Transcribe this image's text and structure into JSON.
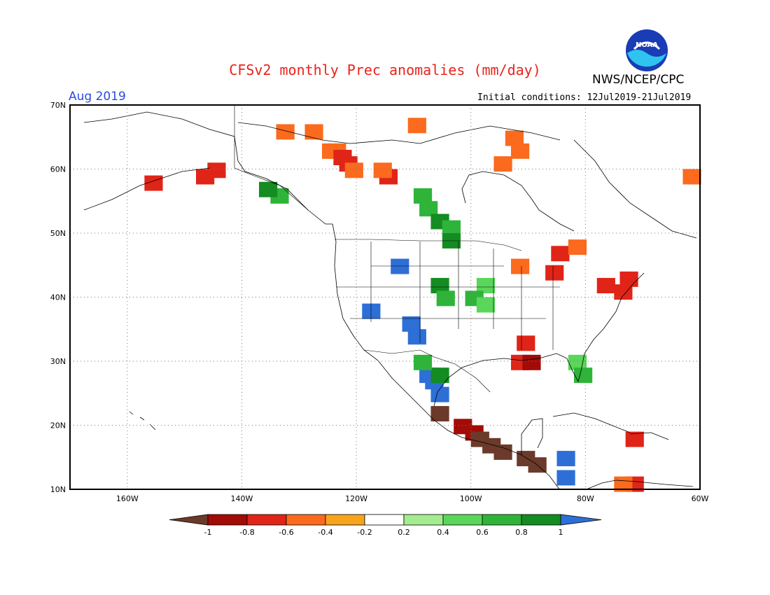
{
  "header": {
    "title": "CFSv2 monthly Prec anomalies (mm/day)",
    "agency": "NWS/NCEP/CPC",
    "logo_text": "NOAA",
    "month": "Aug 2019",
    "initial_conditions": "Initial conditions: 12Jul2019-21Jul2019"
  },
  "map": {
    "lon_range": [
      -170,
      -60
    ],
    "lat_range": [
      10,
      70
    ],
    "lat_labels": [
      "10N",
      "20N",
      "30N",
      "40N",
      "50N",
      "60N",
      "70N"
    ],
    "lat_values": [
      10,
      20,
      30,
      40,
      50,
      60,
      70
    ],
    "lon_labels": [
      "160W",
      "140W",
      "120W",
      "100W",
      "80W",
      "60W"
    ],
    "lon_values": [
      -160,
      -140,
      -120,
      -100,
      -80,
      -60
    ],
    "grid": true
  },
  "colorbar": {
    "labels": [
      "-1",
      "-0.8",
      "-0.6",
      "-0.4",
      "-0.2",
      "0.2",
      "0.4",
      "0.6",
      "0.8",
      "1"
    ],
    "colors": [
      "#a30b06",
      "#e02418",
      "#fb6a1d",
      "#f7a31b",
      "#ffffff",
      "#a4ec8f",
      "#5ad65a",
      "#2fb43a",
      "#148c22"
    ],
    "low_color": "#6b3a2a",
    "high_color": "#2d6fd6"
  },
  "anomaly_cells": [
    {
      "lat": 63,
      "lon": -125,
      "level": "-0.4"
    },
    {
      "lat": 63,
      "lon": -124,
      "level": "-0.4"
    },
    {
      "lat": 62,
      "lon": -123,
      "level": "-0.6"
    },
    {
      "lat": 61,
      "lon": -122,
      "level": "-0.6"
    },
    {
      "lat": 60,
      "lon": -121,
      "level": "-0.4"
    },
    {
      "lat": 59,
      "lon": -115,
      "level": "-0.6"
    },
    {
      "lat": 60,
      "lon": -116,
      "level": "-0.4"
    },
    {
      "lat": 66,
      "lon": -128,
      "level": "-0.4"
    },
    {
      "lat": 66,
      "lon": -133,
      "level": "-0.4"
    },
    {
      "lat": 67,
      "lon": -110,
      "level": "-0.4"
    },
    {
      "lat": 65,
      "lon": -93,
      "level": "-0.4"
    },
    {
      "lat": 63,
      "lon": -92,
      "level": "-0.4"
    },
    {
      "lat": 61,
      "lon": -95,
      "level": "-0.4"
    },
    {
      "lat": 59,
      "lon": -62,
      "level": "-0.4"
    },
    {
      "lat": 60,
      "lon": -145,
      "level": "-0.6"
    },
    {
      "lat": 59,
      "lon": -147,
      "level": "-0.6"
    },
    {
      "lat": 58,
      "lon": -156,
      "level": "-0.6"
    },
    {
      "lat": 56,
      "lon": -109,
      "level": "0.6"
    },
    {
      "lat": 54,
      "lon": -108,
      "level": "0.6"
    },
    {
      "lat": 52,
      "lon": -106,
      "level": "0.8"
    },
    {
      "lat": 51,
      "lon": -104,
      "level": "0.6"
    },
    {
      "lat": 49,
      "lon": -104,
      "level": "0.8"
    },
    {
      "lat": 56,
      "lon": -134,
      "level": "0.6"
    },
    {
      "lat": 57,
      "lon": -136,
      "level": "0.8"
    },
    {
      "lat": 45,
      "lon": -113,
      "level": "1"
    },
    {
      "lat": 42,
      "lon": -106,
      "level": "0.8"
    },
    {
      "lat": 40,
      "lon": -105,
      "level": "0.6"
    },
    {
      "lat": 38,
      "lon": -118,
      "level": "1"
    },
    {
      "lat": 36,
      "lon": -111,
      "level": "1"
    },
    {
      "lat": 34,
      "lon": -110,
      "level": "1"
    },
    {
      "lat": 28,
      "lon": -108,
      "level": "1"
    },
    {
      "lat": 27,
      "lon": -107,
      "level": "1"
    },
    {
      "lat": 25,
      "lon": -106,
      "level": "1"
    },
    {
      "lat": 28,
      "lon": -106,
      "level": "0.8"
    },
    {
      "lat": 30,
      "lon": -109,
      "level": "0.6"
    },
    {
      "lat": 47,
      "lon": -85,
      "level": "-0.6"
    },
    {
      "lat": 48,
      "lon": -82,
      "level": "-0.4"
    },
    {
      "lat": 44,
      "lon": -86,
      "level": "-0.6"
    },
    {
      "lat": 45,
      "lon": -92,
      "level": "-0.4"
    },
    {
      "lat": 42,
      "lon": -77,
      "level": "-0.6"
    },
    {
      "lat": 43,
      "lon": -73,
      "level": "-0.6"
    },
    {
      "lat": 41,
      "lon": -74,
      "level": "-0.6"
    },
    {
      "lat": 33,
      "lon": -91,
      "level": "-0.6"
    },
    {
      "lat": 30,
      "lon": -92,
      "level": "-0.6"
    },
    {
      "lat": 30,
      "lon": -90,
      "level": "-0.8"
    },
    {
      "lat": 20,
      "lon": -102,
      "level": "-0.8"
    },
    {
      "lat": 19,
      "lon": -100,
      "level": "-0.8"
    },
    {
      "lat": 18,
      "lon": -99,
      "level": "-1"
    },
    {
      "lat": 17,
      "lon": -97,
      "level": "-1"
    },
    {
      "lat": 16,
      "lon": -95,
      "level": "-1"
    },
    {
      "lat": 15,
      "lon": -91,
      "level": "-1"
    },
    {
      "lat": 14,
      "lon": -89,
      "level": "-1"
    },
    {
      "lat": 15,
      "lon": -84,
      "level": "1"
    },
    {
      "lat": 12,
      "lon": -84,
      "level": "1"
    },
    {
      "lat": 22,
      "lon": -106,
      "level": "-1"
    },
    {
      "lat": 30,
      "lon": -82,
      "level": "0.4"
    },
    {
      "lat": 28,
      "lon": -81,
      "level": "0.6"
    },
    {
      "lat": 42,
      "lon": -98,
      "level": "0.4"
    },
    {
      "lat": 40,
      "lon": -100,
      "level": "0.6"
    },
    {
      "lat": 39,
      "lon": -98,
      "level": "0.4"
    },
    {
      "lat": 11,
      "lon": -72,
      "level": "-0.6"
    },
    {
      "lat": 11,
      "lon": -74,
      "level": "-0.4"
    },
    {
      "lat": 18,
      "lon": -72,
      "level": "-0.6"
    }
  ]
}
